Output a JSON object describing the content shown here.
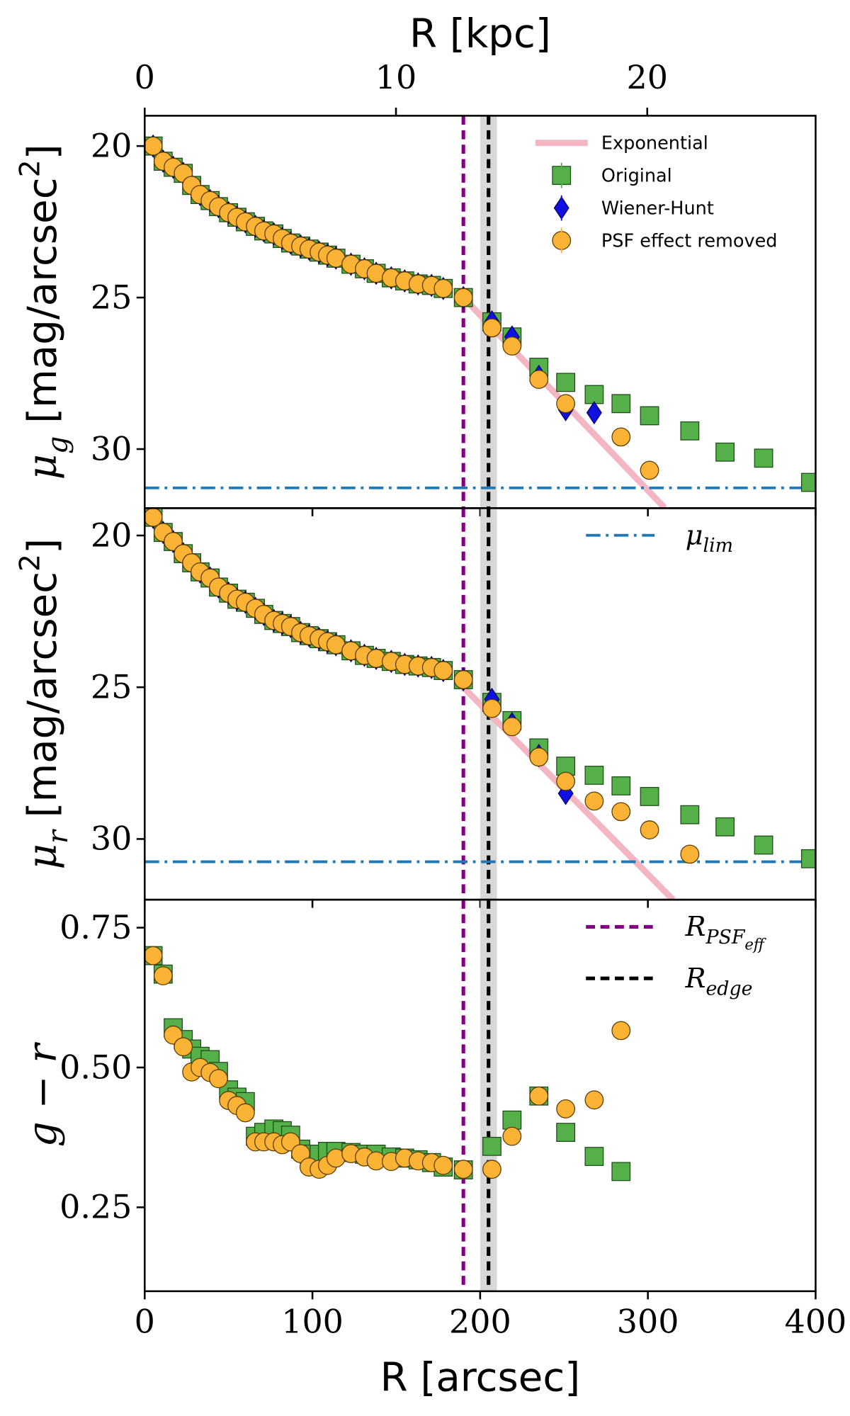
{
  "chart_data": [
    {
      "type": "scatter",
      "x2label": "R [kpc]",
      "x2lim": [
        0,
        26.7
      ],
      "x2ticks": [
        0,
        10,
        20
      ],
      "ylabel": [
        {
          "t": "μ"
        },
        {
          "sub": "g"
        },
        {
          "t": " [mag/arcsec"
        },
        {
          "sup": "2"
        },
        {
          "t": "]"
        }
      ],
      "xlim": [
        0,
        400
      ],
      "ylim": [
        19,
        31.95
      ],
      "y_inverted": true,
      "yticks": [
        20,
        25,
        30
      ],
      "legend": "upper right",
      "x": [
        5,
        11,
        17,
        23,
        28,
        33,
        39,
        44,
        50,
        55,
        60,
        66,
        71,
        77,
        82,
        87,
        93,
        98,
        104,
        109,
        114,
        123,
        131,
        138,
        147,
        155,
        163,
        171,
        178,
        190,
        207,
        219,
        235,
        251,
        268,
        284,
        301,
        325,
        346,
        369,
        397
      ],
      "fit_lines": [
        {
          "name": "Exponential",
          "color": "#f4b6c2",
          "x": [
            190,
            310
          ],
          "y": [
            25,
            31.94
          ]
        }
      ],
      "hlines": [
        {
          "value": 31.28,
          "color": "#1f77b4"
        }
      ],
      "series": [
        {
          "name": "Original",
          "color": "#55b04a",
          "marker": "square",
          "values": [
            20,
            20.5,
            20.7,
            20.9,
            21.3,
            21.6,
            21.8,
            22.0,
            22.2,
            22.35,
            22.5,
            22.65,
            22.8,
            22.9,
            23.05,
            23.2,
            23.3,
            23.4,
            23.5,
            23.6,
            23.7,
            23.9,
            24.05,
            24.2,
            24.35,
            24.45,
            24.55,
            24.6,
            24.7,
            25.0,
            25.8,
            26.3,
            27.3,
            27.8,
            28.2,
            28.5,
            28.9,
            29.4,
            30.1,
            30.3,
            31.1
          ]
        },
        {
          "name": "Wiener-Hunt",
          "color": "#1010e0",
          "marker": "diamond",
          "values": [
            20,
            20.5,
            20.7,
            20.9,
            21.3,
            21.6,
            21.8,
            22.0,
            22.2,
            22.35,
            22.5,
            22.65,
            22.8,
            22.9,
            23.05,
            23.2,
            23.3,
            23.4,
            23.5,
            23.6,
            23.7,
            23.9,
            24.05,
            24.2,
            24.35,
            24.45,
            24.55,
            24.6,
            24.7,
            25.0,
            25.8,
            26.3,
            27.6,
            28.7,
            28.8,
            null,
            null,
            null,
            null,
            null,
            null
          ]
        },
        {
          "name": "PSF effect removed",
          "color": "#fbb335",
          "marker": "circle",
          "values": [
            20,
            20.5,
            20.7,
            20.9,
            21.3,
            21.6,
            21.8,
            22.0,
            22.2,
            22.35,
            22.5,
            22.65,
            22.8,
            22.9,
            23.05,
            23.2,
            23.3,
            23.4,
            23.5,
            23.6,
            23.7,
            23.9,
            24.05,
            24.2,
            24.35,
            24.45,
            24.55,
            24.6,
            24.7,
            25.0,
            26.0,
            26.6,
            27.7,
            28.5,
            null,
            29.6,
            30.7,
            null,
            null,
            null,
            null
          ]
        }
      ]
    },
    {
      "type": "scatter",
      "ylabel": [
        {
          "t": "μ"
        },
        {
          "sub": "r"
        },
        {
          "t": " [mag/arcsec"
        },
        {
          "sup": "2"
        },
        {
          "t": "]"
        }
      ],
      "xlim": [
        0,
        400
      ],
      "ylim": [
        19.1,
        32
      ],
      "y_inverted": true,
      "yticks": [
        20,
        25,
        30
      ],
      "legend": "upper right",
      "x": [
        5,
        11,
        17,
        23,
        28,
        33,
        39,
        44,
        50,
        55,
        60,
        66,
        71,
        77,
        82,
        87,
        93,
        98,
        104,
        109,
        114,
        123,
        131,
        138,
        147,
        155,
        163,
        171,
        178,
        190,
        207,
        219,
        235,
        251,
        268,
        284,
        301,
        325,
        346,
        369,
        397
      ],
      "fit_lines": [
        {
          "color": "#f4b6c2",
          "x": [
            190,
            315
          ],
          "y": [
            25,
            32
          ]
        }
      ],
      "hlines": [
        {
          "name": [
            {
              "t": "μ"
            },
            {
              "sub": "lim"
            }
          ],
          "value": 30.75,
          "color": "#1f77b4"
        }
      ],
      "series": [
        {
          "color": "#55b04a",
          "marker": "square",
          "values": [
            19.4,
            19.9,
            20.2,
            20.6,
            20.9,
            21.2,
            21.4,
            21.7,
            21.9,
            22.1,
            22.2,
            22.4,
            22.6,
            22.8,
            22.9,
            23.0,
            23.2,
            23.3,
            23.4,
            23.5,
            23.6,
            23.8,
            23.95,
            24.05,
            24.15,
            24.25,
            24.3,
            24.35,
            24.45,
            24.75,
            25.5,
            26.1,
            27.0,
            27.6,
            27.9,
            28.25,
            28.6,
            29.2,
            29.6,
            30.2,
            30.65
          ]
        },
        {
          "color": "#1010e0",
          "marker": "diamond",
          "values": [
            19.4,
            19.9,
            20.2,
            20.6,
            20.9,
            21.2,
            21.4,
            21.7,
            21.9,
            22.1,
            22.2,
            22.4,
            22.6,
            22.8,
            22.9,
            23.0,
            23.2,
            23.3,
            23.4,
            23.5,
            23.6,
            23.8,
            23.95,
            24.05,
            24.15,
            24.25,
            24.3,
            24.35,
            24.45,
            24.75,
            25.4,
            26.2,
            27.25,
            28.5,
            null,
            null,
            null,
            null,
            null,
            null,
            null
          ]
        },
        {
          "color": "#fbb335",
          "marker": "circle",
          "values": [
            19.4,
            19.9,
            20.2,
            20.6,
            20.9,
            21.2,
            21.4,
            21.7,
            21.9,
            22.1,
            22.2,
            22.4,
            22.6,
            22.8,
            22.9,
            23.0,
            23.2,
            23.3,
            23.4,
            23.5,
            23.6,
            23.8,
            23.95,
            24.05,
            24.15,
            24.25,
            24.3,
            24.35,
            24.45,
            24.75,
            25.7,
            26.3,
            27.3,
            28.1,
            28.75,
            29.1,
            29.7,
            30.5,
            null,
            null,
            null
          ]
        }
      ]
    },
    {
      "type": "scatter",
      "xlabel": "R [arcsec]",
      "xlim": [
        0,
        400
      ],
      "xticks": [
        0,
        100,
        200,
        300,
        400
      ],
      "ylabel": [
        {
          "t": "g − r"
        }
      ],
      "ylim": [
        0.1,
        0.8
      ],
      "yticks": [
        0.25,
        {
          "value": 0.5,
          "label": "0.50"
        },
        0.75
      ],
      "legend": "upper right",
      "x": [
        5,
        11,
        17,
        23,
        28,
        33,
        39,
        44,
        50,
        55,
        60,
        66,
        71,
        77,
        82,
        87,
        93,
        98,
        104,
        109,
        114,
        123,
        131,
        138,
        147,
        155,
        163,
        171,
        178,
        190,
        207,
        219,
        235,
        251,
        268,
        284,
        301,
        325,
        346,
        369,
        397
      ],
      "band": [
        200,
        210
      ],
      "vlines": [
        {
          "name": [
            {
              "t": "R"
            },
            {
              "sub": "PSF"
            },
            {
              "subsub": "eff"
            }
          ],
          "value": 190,
          "color": "#800080"
        },
        {
          "name": [
            {
              "t": "R"
            },
            {
              "sub": "edge"
            }
          ],
          "value": 205,
          "color": "#000000"
        }
      ],
      "series": [
        {
          "color": "#55b04a",
          "marker": "square",
          "values": [
            0.7,
            0.667,
            0.571,
            0.55,
            0.533,
            0.52,
            0.514,
            0.493,
            0.46,
            0.447,
            0.439,
            0.377,
            0.384,
            0.39,
            0.387,
            0.379,
            0.354,
            0.345,
            0.345,
            0.35,
            0.35,
            0.348,
            0.345,
            0.345,
            0.34,
            0.338,
            0.335,
            0.33,
            0.322,
            0.317,
            0.359,
            0.406,
            0.449,
            0.384,
            0.341,
            0.314,
            null,
            null,
            null,
            null,
            null
          ]
        },
        {
          "color": "#fbb335",
          "marker": "circle",
          "values": [
            0.7,
            0.664,
            0.558,
            0.537,
            0.492,
            0.5,
            0.491,
            0.48,
            0.441,
            0.432,
            0.419,
            0.367,
            0.367,
            0.367,
            0.362,
            0.367,
            0.346,
            0.322,
            0.318,
            0.325,
            0.338,
            0.346,
            0.34,
            0.333,
            0.332,
            0.338,
            0.333,
            0.33,
            0.325,
            0.318,
            0.318,
            0.377,
            0.449,
            0.426,
            0.442,
            0.566,
            null,
            null,
            null,
            null,
            null
          ]
        }
      ]
    }
  ]
}
